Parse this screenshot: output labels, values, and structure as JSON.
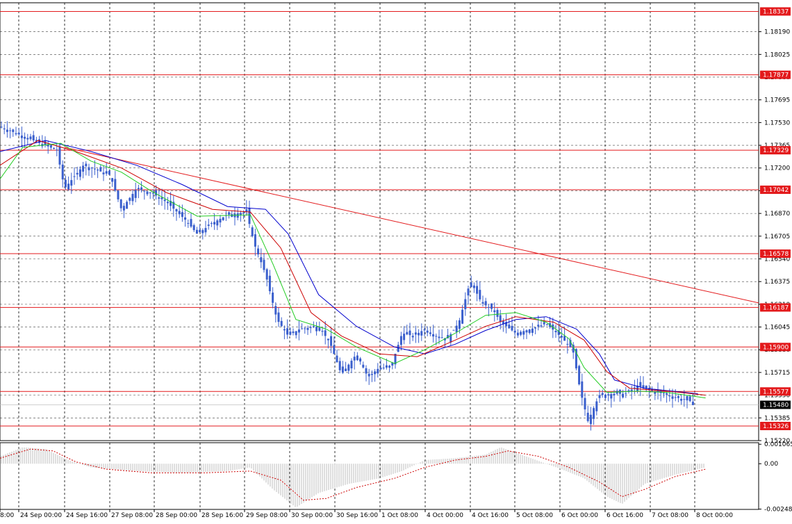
{
  "chart_data": [
    {
      "type": "candlestick",
      "price_scale": {
        "ylim": [
          1.1522,
          1.184
        ],
        "ticks": [
          "1.18190",
          "1.18025",
          "1.17860",
          "1.17695",
          "1.17530",
          "1.17365",
          "1.17200",
          "1.17035",
          "1.16870",
          "1.16705",
          "1.16540",
          "1.16375",
          "1.16210",
          "1.16045",
          "1.15880",
          "1.15715",
          "1.15550",
          "1.15385",
          "1.15220"
        ],
        "tick_values": [
          1.1819,
          1.18025,
          1.1786,
          1.17695,
          1.1753,
          1.17365,
          1.172,
          1.17035,
          1.1687,
          1.16705,
          1.1654,
          1.16375,
          1.1621,
          1.16045,
          1.1588,
          1.15715,
          1.1555,
          1.15385,
          1.1522
        ]
      },
      "time_axis": {
        "labels": [
          "8:00",
          "24 Sep 00:00",
          "24 Sep 16:00",
          "27 Sep 08:00",
          "28 Sep 00:00",
          "28 Sep 16:00",
          "29 Sep 08:00",
          "30 Sep 00:00",
          "30 Sep 16:00",
          "1 Oct 08:00",
          "4 Oct 00:00",
          "4 Oct 16:00",
          "5 Oct 08:00",
          "6 Oct 00:00",
          "6 Oct 16:00",
          "7 Oct 08:00",
          "8 Oct 00:00"
        ]
      },
      "horizontal_levels": [
        {
          "label": "1.18337",
          "value": 1.18337
        },
        {
          "label": "1.17877",
          "value": 1.17877
        },
        {
          "label": "1.17329",
          "value": 1.17329
        },
        {
          "label": "1.17042",
          "value": 1.17042
        },
        {
          "label": "1.16578",
          "value": 1.16578
        },
        {
          "label": "1.16187",
          "value": 1.16187
        },
        {
          "label": "1.15900",
          "value": 1.159
        },
        {
          "label": "1.15577",
          "value": 1.15577
        },
        {
          "label": "1.15326",
          "value": 1.15326
        }
      ],
      "current_price": {
        "label": "1.15480",
        "value": 1.1548
      },
      "trendline": {
        "from": [
          0.085,
          1.1735
        ],
        "to": [
          1.0,
          1.1622
        ]
      },
      "price_path": [
        [
          0.0,
          1.175
        ],
        [
          0.04,
          1.1741
        ],
        [
          0.075,
          1.1733
        ],
        [
          0.085,
          1.1705
        ],
        [
          0.11,
          1.1722
        ],
        [
          0.145,
          1.1715
        ],
        [
          0.16,
          1.169
        ],
        [
          0.18,
          1.1705
        ],
        [
          0.2,
          1.1702
        ],
        [
          0.22,
          1.1695
        ],
        [
          0.245,
          1.1682
        ],
        [
          0.26,
          1.1672
        ],
        [
          0.28,
          1.168
        ],
        [
          0.3,
          1.1686
        ],
        [
          0.325,
          1.1688
        ],
        [
          0.335,
          1.1665
        ],
        [
          0.35,
          1.1643
        ],
        [
          0.365,
          1.161
        ],
        [
          0.38,
          1.1598
        ],
        [
          0.395,
          1.1603
        ],
        [
          0.42,
          1.1605
        ],
        [
          0.435,
          1.1593
        ],
        [
          0.45,
          1.157
        ],
        [
          0.47,
          1.1585
        ],
        [
          0.485,
          1.1568
        ],
        [
          0.5,
          1.1575
        ],
        [
          0.515,
          1.1575
        ],
        [
          0.53,
          1.16
        ],
        [
          0.545,
          1.1598
        ],
        [
          0.56,
          1.1603
        ],
        [
          0.575,
          1.1598
        ],
        [
          0.59,
          1.1596
        ],
        [
          0.605,
          1.1608
        ],
        [
          0.62,
          1.1638
        ],
        [
          0.635,
          1.1622
        ],
        [
          0.65,
          1.1617
        ],
        [
          0.66,
          1.1608
        ],
        [
          0.68,
          1.16
        ],
        [
          0.7,
          1.1603
        ],
        [
          0.72,
          1.1607
        ],
        [
          0.74,
          1.1597
        ],
        [
          0.755,
          1.1588
        ],
        [
          0.765,
          1.1558
        ],
        [
          0.775,
          1.1536
        ],
        [
          0.79,
          1.1555
        ],
        [
          0.81,
          1.1556
        ],
        [
          0.825,
          1.1556
        ],
        [
          0.84,
          1.1562
        ],
        [
          0.86,
          1.1558
        ],
        [
          0.875,
          1.1556
        ],
        [
          0.9,
          1.1552
        ],
        [
          0.915,
          1.155
        ]
      ],
      "ma_fast": [
        [
          0.0,
          1.1712
        ],
        [
          0.03,
          1.1735
        ],
        [
          0.08,
          1.1738
        ],
        [
          0.12,
          1.1725
        ],
        [
          0.16,
          1.1717
        ],
        [
          0.2,
          1.1703
        ],
        [
          0.26,
          1.1685
        ],
        [
          0.33,
          1.1686
        ],
        [
          0.36,
          1.165
        ],
        [
          0.39,
          1.161
        ],
        [
          0.43,
          1.1603
        ],
        [
          0.47,
          1.159
        ],
        [
          0.52,
          1.1578
        ],
        [
          0.56,
          1.1588
        ],
        [
          0.6,
          1.16
        ],
        [
          0.64,
          1.1613
        ],
        [
          0.68,
          1.1615
        ],
        [
          0.72,
          1.1608
        ],
        [
          0.75,
          1.1596
        ],
        [
          0.77,
          1.1575
        ],
        [
          0.8,
          1.1557
        ],
        [
          0.84,
          1.1558
        ],
        [
          0.88,
          1.1557
        ],
        [
          0.93,
          1.1553
        ]
      ],
      "ma_mid": [
        [
          0.0,
          1.1722
        ],
        [
          0.05,
          1.174
        ],
        [
          0.1,
          1.1732
        ],
        [
          0.16,
          1.172
        ],
        [
          0.22,
          1.1702
        ],
        [
          0.28,
          1.169
        ],
        [
          0.33,
          1.1688
        ],
        [
          0.37,
          1.1662
        ],
        [
          0.41,
          1.1615
        ],
        [
          0.45,
          1.1598
        ],
        [
          0.5,
          1.1585
        ],
        [
          0.55,
          1.1583
        ],
        [
          0.6,
          1.1595
        ],
        [
          0.64,
          1.1605
        ],
        [
          0.68,
          1.1612
        ],
        [
          0.73,
          1.1608
        ],
        [
          0.77,
          1.1595
        ],
        [
          0.8,
          1.1572
        ],
        [
          0.83,
          1.156
        ],
        [
          0.88,
          1.1558
        ],
        [
          0.93,
          1.1555
        ]
      ],
      "ma_slow": [
        [
          0.0,
          1.1732
        ],
        [
          0.06,
          1.174
        ],
        [
          0.12,
          1.1732
        ],
        [
          0.18,
          1.1722
        ],
        [
          0.24,
          1.1708
        ],
        [
          0.3,
          1.1692
        ],
        [
          0.35,
          1.169
        ],
        [
          0.38,
          1.1672
        ],
        [
          0.42,
          1.1628
        ],
        [
          0.47,
          1.1605
        ],
        [
          0.52,
          1.159
        ],
        [
          0.56,
          1.1585
        ],
        [
          0.6,
          1.1592
        ],
        [
          0.64,
          1.1602
        ],
        [
          0.68,
          1.161
        ],
        [
          0.72,
          1.1612
        ],
        [
          0.76,
          1.1603
        ],
        [
          0.79,
          1.1585
        ],
        [
          0.81,
          1.1566
        ],
        [
          0.85,
          1.156
        ],
        [
          0.92,
          1.1556
        ]
      ]
    },
    {
      "type": "macd",
      "scale": {
        "ylim": [
          -0.0025,
          0.00115
        ],
        "tick_labels": [
          "0.001065",
          "0.00",
          "-0.002484"
        ],
        "tick_values": [
          0.001065,
          0.0,
          -0.002484
        ]
      },
      "histogram_path": [
        [
          0.0,
          0.0004
        ],
        [
          0.03,
          0.0009
        ],
        [
          0.06,
          0.0008
        ],
        [
          0.09,
          0.0002
        ],
        [
          0.12,
          -0.0002
        ],
        [
          0.18,
          -0.0004
        ],
        [
          0.24,
          -0.0005
        ],
        [
          0.3,
          -0.0004
        ],
        [
          0.33,
          -0.0002
        ],
        [
          0.36,
          -0.0014
        ],
        [
          0.39,
          -0.0024
        ],
        [
          0.42,
          -0.0016
        ],
        [
          0.46,
          -0.0011
        ],
        [
          0.5,
          -0.0008
        ],
        [
          0.53,
          -0.0004
        ],
        [
          0.56,
          0.0002
        ],
        [
          0.6,
          0.0003
        ],
        [
          0.64,
          0.0005
        ],
        [
          0.66,
          0.0009
        ],
        [
          0.7,
          0.0003
        ],
        [
          0.74,
          -0.0003
        ],
        [
          0.77,
          -0.0008
        ],
        [
          0.8,
          -0.0018
        ],
        [
          0.82,
          -0.0022
        ],
        [
          0.85,
          -0.0011
        ],
        [
          0.89,
          -0.0006
        ],
        [
          0.93,
          -0.0002
        ]
      ],
      "signal_path": [
        [
          0.0,
          0.0003
        ],
        [
          0.04,
          0.0008
        ],
        [
          0.07,
          0.0007
        ],
        [
          0.1,
          0.0001
        ],
        [
          0.14,
          -0.0003
        ],
        [
          0.2,
          -0.0005
        ],
        [
          0.27,
          -0.0005
        ],
        [
          0.33,
          -0.0004
        ],
        [
          0.37,
          -0.0009
        ],
        [
          0.4,
          -0.002
        ],
        [
          0.43,
          -0.0019
        ],
        [
          0.47,
          -0.0013
        ],
        [
          0.52,
          -0.0008
        ],
        [
          0.56,
          -0.0002
        ],
        [
          0.6,
          0.0002
        ],
        [
          0.64,
          0.0004
        ],
        [
          0.67,
          0.0007
        ],
        [
          0.71,
          0.0004
        ],
        [
          0.75,
          -0.0002
        ],
        [
          0.79,
          -0.001
        ],
        [
          0.82,
          -0.0018
        ],
        [
          0.85,
          -0.0014
        ],
        [
          0.89,
          -0.0007
        ],
        [
          0.93,
          -0.0003
        ]
      ]
    }
  ]
}
